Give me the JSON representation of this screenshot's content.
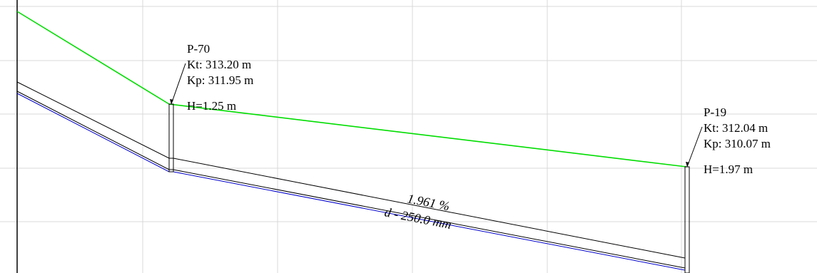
{
  "colors": {
    "background": "#ffffff",
    "grid": "#d9d9d9",
    "terrain_line": "#00dd00",
    "pipe_outline": "#000000",
    "pipe_invert": "#0000cc"
  },
  "manholes": [
    {
      "id": "P-70",
      "kt": "Kt: 313.20 m",
      "kp": "Kp: 311.95 m",
      "h": "H=1.25 m"
    },
    {
      "id": "P-19",
      "kt": "Kt: 312.04 m",
      "kp": "Kp: 310.07 m",
      "h": "H=1.97 m"
    }
  ],
  "pipe": {
    "slope": "1.961 %",
    "diameter": "d - 250.0 mm"
  }
}
